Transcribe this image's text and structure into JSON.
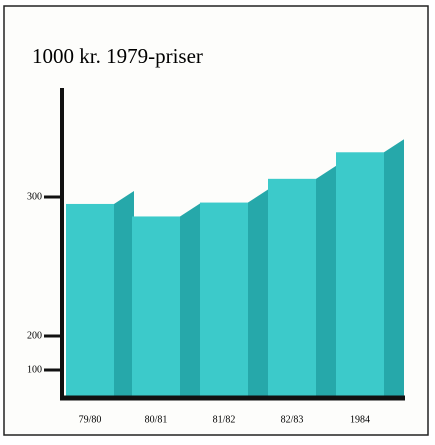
{
  "chart_data": {
    "type": "bar3d",
    "title": "1000 kr.  1979-priser",
    "categories": [
      "79/80",
      "80/81",
      "81/82",
      "82/83",
      "1984"
    ],
    "values": [
      295,
      286,
      296,
      313,
      332
    ],
    "color": "#3ccaca",
    "side_color": "#26a8aa",
    "ylim": [
      0,
      378
    ],
    "yticks": [
      100,
      200,
      300
    ],
    "broken_axis": true
  }
}
